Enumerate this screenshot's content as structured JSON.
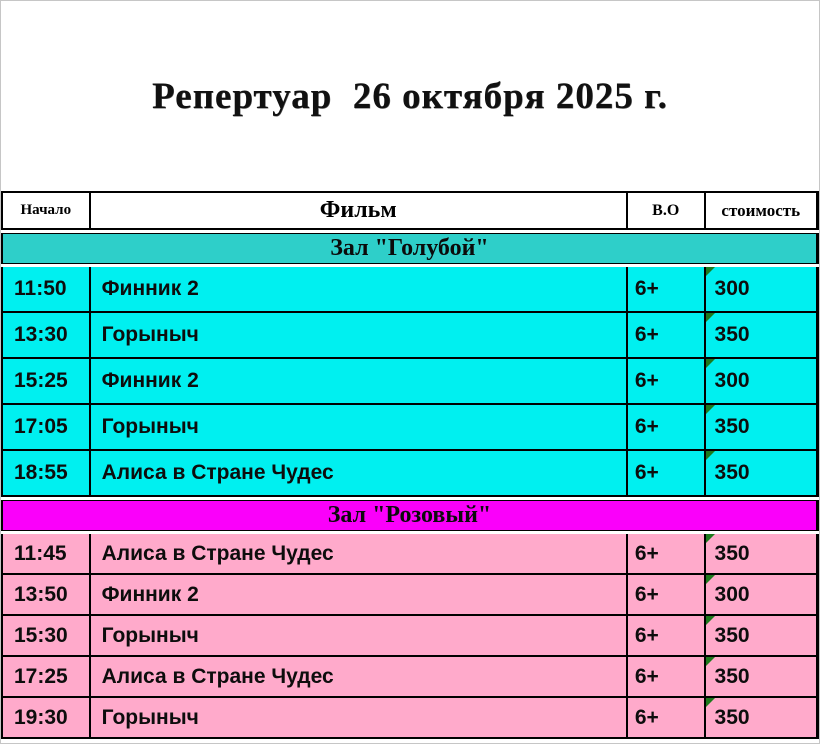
{
  "title": "Репертуар  26 октября 2025 г.",
  "table": {
    "columns": [
      "Начало",
      "Фильм",
      "В.О",
      "стоимость"
    ],
    "sections": [
      {
        "hall": "Зал \"Голубой\"",
        "rows": [
          {
            "time": "11:50",
            "film": "Финник 2",
            "age": "6+",
            "price": "300"
          },
          {
            "time": "13:30",
            "film": "Горыныч",
            "age": "6+",
            "price": "350"
          },
          {
            "time": "15:25",
            "film": "Финник 2",
            "age": "6+",
            "price": "300"
          },
          {
            "time": "17:05",
            "film": "Горыныч",
            "age": "6+",
            "price": "350"
          },
          {
            "time": "18:55",
            "film": "Алиса в Стране Чудес",
            "age": "6+",
            "price": "350"
          }
        ]
      },
      {
        "hall": "Зал \"Розовый\"",
        "rows": [
          {
            "time": "11:45",
            "film": "Алиса в Стране Чудес",
            "age": "6+",
            "price": "350"
          },
          {
            "time": "13:50",
            "film": "Финник 2",
            "age": "6+",
            "price": "300"
          },
          {
            "time": "15:30",
            "film": "Горыныч",
            "age": "6+",
            "price": "350"
          },
          {
            "time": "17:25",
            "film": "Алиса в Стране Чудес",
            "age": "6+",
            "price": "350"
          },
          {
            "time": "19:30",
            "film": "Горыныч",
            "age": "6+",
            "price": "350"
          }
        ]
      }
    ]
  },
  "colors": {
    "blue_band": "#2ecfc9",
    "blue_row": "#00f0f0",
    "pink_band": "#fa00fa",
    "pink_row": "#ffaacb",
    "border": "#000000",
    "flag_green": "#1d7a1d"
  }
}
